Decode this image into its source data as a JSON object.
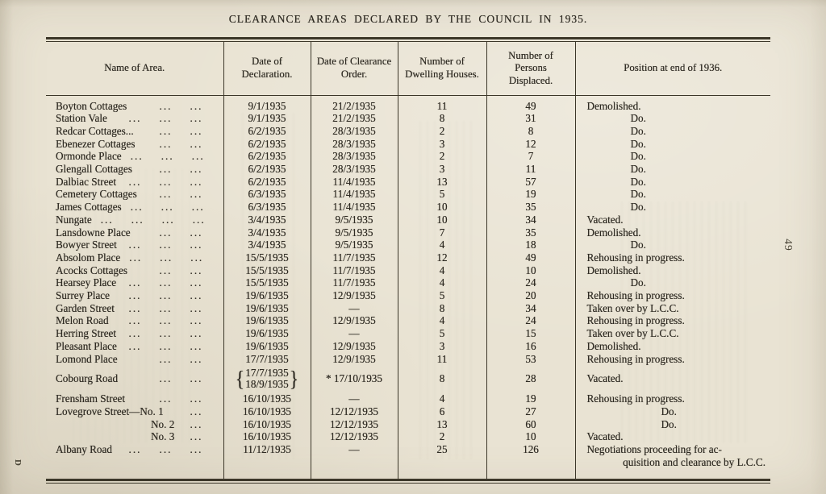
{
  "colors": {
    "paper": "#e9e3d3",
    "ink": "#2f2b23"
  },
  "page": {
    "title": "CLEARANCE AREAS DECLARED BY THE COUNCIL IN 1935.",
    "page_number": "49",
    "printer_mark": "D"
  },
  "table": {
    "leader_glyph": "...",
    "columns": [
      "Name of Area.",
      "Date of Declaration.",
      "Date of Clearance Order.",
      "Number of Dwelling Houses.",
      "Number of Persons Displaced.",
      "Position at end of 1936."
    ],
    "rows": [
      {
        "name": "Boyton Cottages",
        "dots": 2,
        "declaration": "9/1/1935",
        "clearance": "21/2/1935",
        "houses": "11",
        "persons": "49",
        "position": "Demolished."
      },
      {
        "name": "Station Vale",
        "dots": 3,
        "declaration": "9/1/1935",
        "clearance": "21/2/1935",
        "houses": "8",
        "persons": "31",
        "position": "Do."
      },
      {
        "name": "Redcar Cottages...",
        "dots": 2,
        "declaration": "6/2/1935",
        "clearance": "28/3/1935",
        "houses": "2",
        "persons": "8",
        "position": "Do."
      },
      {
        "name": "Ebenezer Cottages",
        "dots": 2,
        "declaration": "6/2/1935",
        "clearance": "28/3/1935",
        "houses": "3",
        "persons": "12",
        "position": "Do."
      },
      {
        "name": "Ormonde Place",
        "dots": 3,
        "declaration": "6/2/1935",
        "clearance": "28/3/1935",
        "houses": "2",
        "persons": "7",
        "position": "Do."
      },
      {
        "name": "Glengall Cottages",
        "dots": 2,
        "declaration": "6/2/1935",
        "clearance": "28/3/1935",
        "houses": "3",
        "persons": "11",
        "position": "Do."
      },
      {
        "name": "Dalbiac Street",
        "dots": 3,
        "declaration": "6/2/1935",
        "clearance": "11/4/1935",
        "houses": "13",
        "persons": "57",
        "position": "Do."
      },
      {
        "name": "Cemetery Cottages",
        "dots": 2,
        "declaration": "6/3/1935",
        "clearance": "11/4/1935",
        "houses": "5",
        "persons": "19",
        "position": "Do."
      },
      {
        "name": "James Cottages",
        "dots": 3,
        "declaration": "6/3/1935",
        "clearance": "11/4/1935",
        "houses": "10",
        "persons": "35",
        "position": "Do."
      },
      {
        "name": "Nungate",
        "dots": 4,
        "declaration": "3/4/1935",
        "clearance": "9/5/1935",
        "houses": "10",
        "persons": "34",
        "position": "Vacated."
      },
      {
        "name": "Lansdowne Place",
        "dots": 2,
        "declaration": "3/4/1935",
        "clearance": "9/5/1935",
        "houses": "7",
        "persons": "35",
        "position": "Demolished."
      },
      {
        "name": "Bowyer Street",
        "dots": 3,
        "declaration": "3/4/1935",
        "clearance": "9/5/1935",
        "houses": "4",
        "persons": "18",
        "position": "Do."
      },
      {
        "name": "Absolom Place",
        "dots": 3,
        "declaration": "15/5/1935",
        "clearance": "11/7/1935",
        "houses": "12",
        "persons": "49",
        "position": "Rehousing in progress."
      },
      {
        "name": "Acocks Cottages",
        "dots": 2,
        "declaration": "15/5/1935",
        "clearance": "11/7/1935",
        "houses": "4",
        "persons": "10",
        "position": "Demolished."
      },
      {
        "name": "Hearsey Place",
        "dots": 3,
        "declaration": "15/5/1935",
        "clearance": "11/7/1935",
        "houses": "4",
        "persons": "24",
        "position": "Do."
      },
      {
        "name": "Surrey Place",
        "dots": 3,
        "declaration": "19/6/1935",
        "clearance": "12/9/1935",
        "houses": "5",
        "persons": "20",
        "position": "Rehousing in progress."
      },
      {
        "name": "Garden Street",
        "dots": 3,
        "declaration": "19/6/1935",
        "clearance": "—",
        "houses": "8",
        "persons": "34",
        "position": "Taken over by L.C.C."
      },
      {
        "name": "Melon Road",
        "dots": 3,
        "declaration": "19/6/1935",
        "clearance": "12/9/1935",
        "houses": "4",
        "persons": "24",
        "position": "Rehousing in progress."
      },
      {
        "name": "Herring Street",
        "dots": 3,
        "declaration": "19/6/1935",
        "clearance": "—",
        "houses": "5",
        "persons": "15",
        "position": "Taken over by L.C.C."
      },
      {
        "name": "Pleasant Place",
        "dots": 3,
        "declaration": "19/6/1935",
        "clearance": "12/9/1935",
        "houses": "3",
        "persons": "16",
        "position": "Demolished."
      },
      {
        "name": "Lomond Place",
        "dots": 2,
        "declaration": "17/7/1935",
        "clearance": "12/9/1935",
        "houses": "11",
        "persons": "53",
        "position": "Rehousing in progress."
      },
      {
        "name": "Cobourg Road",
        "dots": 2,
        "declaration_multi": [
          "17/7/1935",
          "18/9/1935"
        ],
        "clearance": "* 17/10/1935",
        "houses": "8",
        "persons": "28",
        "position": "Vacated."
      },
      {
        "name": "Frensham Street",
        "dots": 2,
        "declaration": "16/10/1935",
        "clearance": "—",
        "houses": "4",
        "persons": "19",
        "position": "Rehousing in progress."
      },
      {
        "name": "Lovegrove Street—No. 1",
        "dots": 1,
        "declaration": "16/10/1935",
        "clearance": "12/12/1935",
        "houses": "6",
        "persons": "27",
        "position": "Do.",
        "position_offset": "deep"
      },
      {
        "name": "No. 2",
        "dots": 1,
        "indent": true,
        "declaration": "16/10/1935",
        "clearance": "12/12/1935",
        "houses": "13",
        "persons": "60",
        "position": "Do.",
        "position_offset": "deep"
      },
      {
        "name": "No. 3",
        "dots": 1,
        "indent": true,
        "declaration": "16/10/1935",
        "clearance": "12/12/1935",
        "houses": "2",
        "persons": "10",
        "position": "Vacated."
      },
      {
        "name": "Albany Road",
        "dots": 3,
        "declaration": "11/12/1935",
        "clearance": "—",
        "houses": "25",
        "persons": "126",
        "position_lines": [
          "Negotiations proceeding for ac-",
          "quisition and clearance by L.C.C."
        ]
      }
    ]
  }
}
